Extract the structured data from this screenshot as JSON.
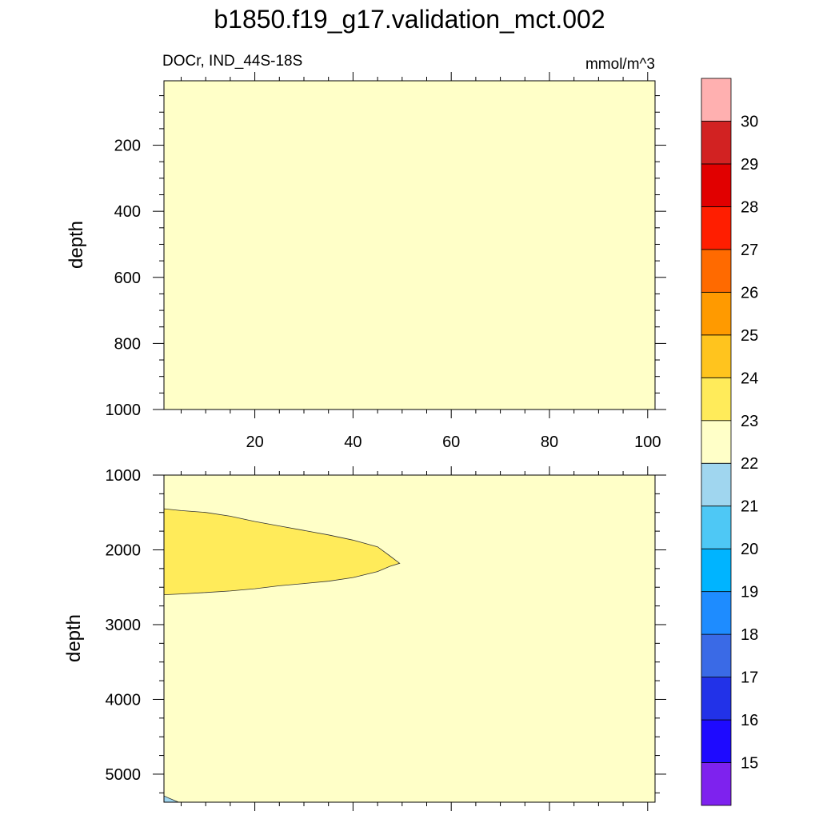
{
  "chart_data": {
    "type": "contour",
    "title": "b1850.f19_g17.validation_mct.002",
    "left_string": "DOCr, IND_44S-18S",
    "right_string": "mmol/m^3",
    "x_ticks": [
      "20",
      "40",
      "60",
      "80",
      "100"
    ],
    "x_tick_values": [
      20,
      40,
      60,
      80,
      100
    ],
    "xlim": [
      1.5,
      101.5
    ],
    "background_level_color": "#FFFFC8",
    "panels": [
      {
        "name": "upper",
        "ylabel": "depth",
        "ylim": [
          1000,
          5
        ],
        "y_ticks": [
          "200",
          "400",
          "600",
          "800",
          "1000"
        ],
        "y_tick_values": [
          200,
          400,
          600,
          800,
          1000
        ],
        "regions": []
      },
      {
        "name": "lower",
        "ylabel": "depth",
        "ylim": [
          5375,
          1000
        ],
        "y_ticks": [
          "1000",
          "2000",
          "3000",
          "4000",
          "5000"
        ],
        "y_tick_values": [
          1000,
          2000,
          3000,
          4000,
          5000
        ],
        "regions": [
          {
            "level": "23-24",
            "color": "#FFEB5A",
            "points": [
              [
                1.5,
                1450
              ],
              [
                5,
                1475
              ],
              [
                10,
                1500
              ],
              [
                15,
                1550
              ],
              [
                20,
                1620
              ],
              [
                25,
                1680
              ],
              [
                30,
                1740
              ],
              [
                35,
                1800
              ],
              [
                40,
                1870
              ],
              [
                45,
                1960
              ],
              [
                47.5,
                2080
              ],
              [
                49.5,
                2180
              ],
              [
                47.5,
                2220
              ],
              [
                45,
                2290
              ],
              [
                40,
                2370
              ],
              [
                35,
                2420
              ],
              [
                30,
                2450
              ],
              [
                25,
                2480
              ],
              [
                20,
                2520
              ],
              [
                15,
                2550
              ],
              [
                10,
                2570
              ],
              [
                5,
                2590
              ],
              [
                1.5,
                2600
              ]
            ]
          },
          {
            "level": "21-22",
            "color": "#A0D6EF",
            "points": [
              [
                1.5,
                5290
              ],
              [
                2.5,
                5320
              ],
              [
                4.5,
                5375
              ],
              [
                1.5,
                5375
              ]
            ]
          }
        ]
      }
    ],
    "colorbar": {
      "colors": [
        "#7E22EE",
        "#1E0AFF",
        "#2232E8",
        "#3A6AE6",
        "#1E8CFF",
        "#00B4FF",
        "#4EC8F5",
        "#A0D6EF",
        "#FFFFC8",
        "#FFEB5A",
        "#FFC41E",
        "#FF9A00",
        "#FF6A00",
        "#FF1E00",
        "#E10000",
        "#D22222",
        "#FFB0B0"
      ],
      "labels": [
        "15",
        "16",
        "17",
        "18",
        "19",
        "20",
        "21",
        "22",
        "23",
        "24",
        "25",
        "26",
        "27",
        "28",
        "29",
        "30"
      ]
    }
  }
}
